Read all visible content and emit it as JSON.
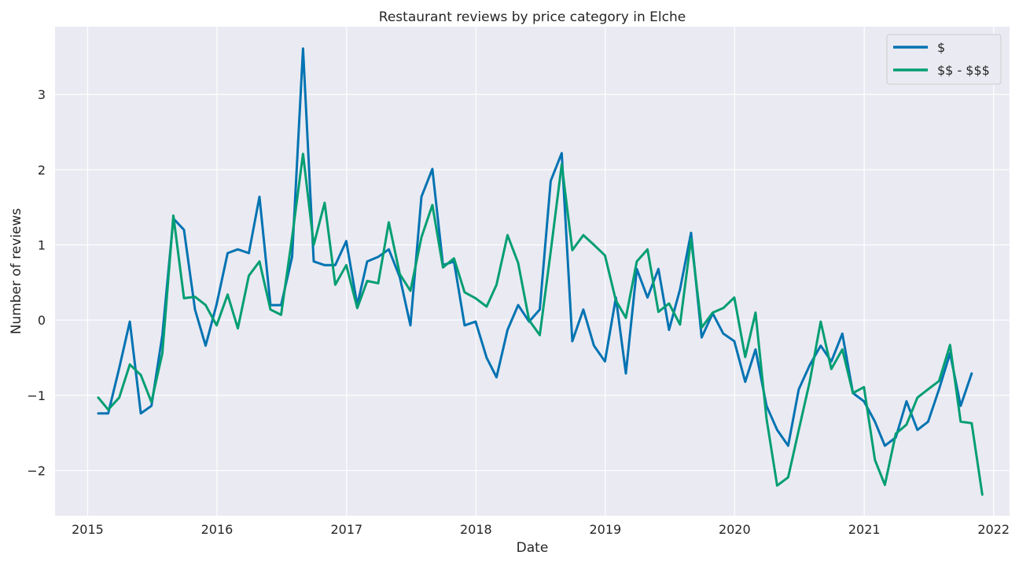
{
  "chart_data": {
    "type": "line",
    "title": "Restaurant reviews by price category in Elche",
    "xlabel": "Date",
    "ylabel": "Number of reviews",
    "xlim": [
      "2014-10-01",
      "2022-02-15"
    ],
    "ylim": [
      -2.6,
      3.9
    ],
    "x_ticks": [
      "2015",
      "2016",
      "2017",
      "2018",
      "2019",
      "2020",
      "2021",
      "2022"
    ],
    "y_ticks": [
      3,
      2,
      1,
      0,
      -1,
      -2
    ],
    "y_tick_labels": [
      "3",
      "2",
      "1",
      "0",
      "−1",
      "−2"
    ],
    "grid": true,
    "legend_position": "top-right",
    "background_color": "#eaeaf2",
    "grid_color": "#ffffff",
    "series": [
      {
        "name": "$",
        "color": "#0173b2",
        "points": [
          [
            "2015-01-31",
            -1.24
          ],
          [
            "2015-02-28",
            -1.24
          ],
          [
            "2015-03-31",
            -0.64
          ],
          [
            "2015-04-30",
            -0.02
          ],
          [
            "2015-05-31",
            -1.24
          ],
          [
            "2015-06-30",
            -1.14
          ],
          [
            "2015-07-31",
            -0.2
          ],
          [
            "2015-08-31",
            1.35
          ],
          [
            "2015-09-30",
            1.2
          ],
          [
            "2015-10-31",
            0.14
          ],
          [
            "2015-11-30",
            -0.34
          ],
          [
            "2015-12-31",
            0.21
          ],
          [
            "2016-01-31",
            0.89
          ],
          [
            "2016-02-29",
            0.94
          ],
          [
            "2016-03-31",
            0.89
          ],
          [
            "2016-04-30",
            1.64
          ],
          [
            "2016-05-31",
            0.2
          ],
          [
            "2016-06-30",
            0.2
          ],
          [
            "2016-07-31",
            0.84
          ],
          [
            "2016-08-31",
            3.61
          ],
          [
            "2016-09-30",
            0.78
          ],
          [
            "2016-10-31",
            0.73
          ],
          [
            "2016-11-30",
            0.73
          ],
          [
            "2016-12-31",
            1.05
          ],
          [
            "2017-01-31",
            0.2
          ],
          [
            "2017-02-28",
            0.78
          ],
          [
            "2017-03-31",
            0.84
          ],
          [
            "2017-04-30",
            0.94
          ],
          [
            "2017-05-31",
            0.57
          ],
          [
            "2017-06-30",
            -0.07
          ],
          [
            "2017-07-31",
            1.64
          ],
          [
            "2017-08-31",
            2.01
          ],
          [
            "2017-09-30",
            0.73
          ],
          [
            "2017-10-31",
            0.78
          ],
          [
            "2017-11-30",
            -0.07
          ],
          [
            "2017-12-31",
            -0.02
          ],
          [
            "2018-01-31",
            -0.5
          ],
          [
            "2018-02-28",
            -0.76
          ],
          [
            "2018-03-31",
            -0.13
          ],
          [
            "2018-04-30",
            0.2
          ],
          [
            "2018-05-31",
            -0.02
          ],
          [
            "2018-06-30",
            0.14
          ],
          [
            "2018-07-31",
            1.85
          ],
          [
            "2018-08-31",
            2.22
          ],
          [
            "2018-09-30",
            -0.28
          ],
          [
            "2018-10-31",
            0.14
          ],
          [
            "2018-11-30",
            -0.34
          ],
          [
            "2018-12-31",
            -0.55
          ],
          [
            "2019-01-31",
            0.3
          ],
          [
            "2019-02-28",
            -0.71
          ],
          [
            "2019-03-31",
            0.68
          ],
          [
            "2019-04-30",
            0.3
          ],
          [
            "2019-05-31",
            0.68
          ],
          [
            "2019-06-30",
            -0.13
          ],
          [
            "2019-07-31",
            0.41
          ],
          [
            "2019-08-31",
            1.16
          ],
          [
            "2019-09-30",
            -0.23
          ],
          [
            "2019-10-31",
            0.09
          ],
          [
            "2019-11-30",
            -0.18
          ],
          [
            "2019-12-31",
            -0.28
          ],
          [
            "2020-01-31",
            -0.82
          ],
          [
            "2020-02-29",
            -0.39
          ],
          [
            "2020-03-31",
            -1.14
          ],
          [
            "2020-04-30",
            -1.46
          ],
          [
            "2020-05-31",
            -1.67
          ],
          [
            "2020-06-30",
            -0.92
          ],
          [
            "2020-07-31",
            -0.6
          ],
          [
            "2020-08-31",
            -0.34
          ],
          [
            "2020-09-30",
            -0.55
          ],
          [
            "2020-10-31",
            -0.18
          ],
          [
            "2020-11-30",
            -0.97
          ],
          [
            "2020-12-31",
            -1.08
          ],
          [
            "2021-01-31",
            -1.35
          ],
          [
            "2021-02-28",
            -1.67
          ],
          [
            "2021-03-31",
            -1.56
          ],
          [
            "2021-04-30",
            -1.08
          ],
          [
            "2021-05-31",
            -1.46
          ],
          [
            "2021-06-30",
            -1.35
          ],
          [
            "2021-07-31",
            -0.92
          ],
          [
            "2021-08-31",
            -0.44
          ],
          [
            "2021-09-30",
            -1.14
          ],
          [
            "2021-10-31",
            -0.71
          ]
        ]
      },
      {
        "name": "$$ - $$$",
        "color": "#029e73",
        "points": [
          [
            "2015-01-31",
            -1.03
          ],
          [
            "2015-02-28",
            -1.19
          ],
          [
            "2015-03-31",
            -1.03
          ],
          [
            "2015-04-30",
            -0.59
          ],
          [
            "2015-05-31",
            -0.73
          ],
          [
            "2015-06-30",
            -1.09
          ],
          [
            "2015-07-31",
            -0.44
          ],
          [
            "2015-08-31",
            1.39
          ],
          [
            "2015-09-30",
            0.29
          ],
          [
            "2015-10-31",
            0.31
          ],
          [
            "2015-11-30",
            0.2
          ],
          [
            "2015-12-31",
            -0.07
          ],
          [
            "2016-01-31",
            0.34
          ],
          [
            "2016-02-29",
            -0.11
          ],
          [
            "2016-03-31",
            0.59
          ],
          [
            "2016-04-30",
            0.78
          ],
          [
            "2016-05-31",
            0.14
          ],
          [
            "2016-06-30",
            0.07
          ],
          [
            "2016-07-31",
            1.1
          ],
          [
            "2016-08-31",
            2.21
          ],
          [
            "2016-09-30",
            1.0
          ],
          [
            "2016-10-31",
            1.56
          ],
          [
            "2016-11-30",
            0.47
          ],
          [
            "2016-12-31",
            0.73
          ],
          [
            "2017-01-31",
            0.16
          ],
          [
            "2017-02-28",
            0.52
          ],
          [
            "2017-03-31",
            0.49
          ],
          [
            "2017-04-30",
            1.3
          ],
          [
            "2017-05-31",
            0.61
          ],
          [
            "2017-06-30",
            0.39
          ],
          [
            "2017-07-31",
            1.1
          ],
          [
            "2017-08-31",
            1.53
          ],
          [
            "2017-09-30",
            0.7
          ],
          [
            "2017-10-31",
            0.82
          ],
          [
            "2017-11-30",
            0.37
          ],
          [
            "2017-12-31",
            0.29
          ],
          [
            "2018-01-31",
            0.18
          ],
          [
            "2018-02-28",
            0.47
          ],
          [
            "2018-03-31",
            1.13
          ],
          [
            "2018-04-30",
            0.76
          ],
          [
            "2018-05-31",
            0.0
          ],
          [
            "2018-06-30",
            -0.2
          ],
          [
            "2018-07-31",
            0.91
          ],
          [
            "2018-08-31",
            2.07
          ],
          [
            "2018-09-30",
            0.93
          ],
          [
            "2018-10-31",
            1.13
          ],
          [
            "2018-11-30",
            1.0
          ],
          [
            "2018-12-31",
            0.86
          ],
          [
            "2019-01-31",
            0.26
          ],
          [
            "2019-02-28",
            0.03
          ],
          [
            "2019-03-31",
            0.78
          ],
          [
            "2019-04-30",
            0.94
          ],
          [
            "2019-05-31",
            0.11
          ],
          [
            "2019-06-30",
            0.22
          ],
          [
            "2019-07-31",
            -0.06
          ],
          [
            "2019-08-31",
            1.08
          ],
          [
            "2019-09-30",
            -0.1
          ],
          [
            "2019-10-31",
            0.1
          ],
          [
            "2019-11-30",
            0.16
          ],
          [
            "2019-12-31",
            0.3
          ],
          [
            "2020-01-31",
            -0.49
          ],
          [
            "2020-02-29",
            0.1
          ],
          [
            "2020-03-31",
            -1.31
          ],
          [
            "2020-04-30",
            -2.2
          ],
          [
            "2020-05-31",
            -2.09
          ],
          [
            "2020-06-30",
            -1.46
          ],
          [
            "2020-07-31",
            -0.82
          ],
          [
            "2020-08-31",
            -0.02
          ],
          [
            "2020-09-30",
            -0.65
          ],
          [
            "2020-10-31",
            -0.39
          ],
          [
            "2020-11-30",
            -0.97
          ],
          [
            "2020-12-31",
            -0.89
          ],
          [
            "2021-01-31",
            -1.86
          ],
          [
            "2021-02-28",
            -2.19
          ],
          [
            "2021-03-31",
            -1.51
          ],
          [
            "2021-04-30",
            -1.39
          ],
          [
            "2021-05-31",
            -1.03
          ],
          [
            "2021-06-30",
            -0.92
          ],
          [
            "2021-07-31",
            -0.81
          ],
          [
            "2021-08-31",
            -0.33
          ],
          [
            "2021-09-30",
            -1.35
          ],
          [
            "2021-10-31",
            -1.37
          ],
          [
            "2021-11-30",
            -2.32
          ]
        ]
      }
    ]
  }
}
